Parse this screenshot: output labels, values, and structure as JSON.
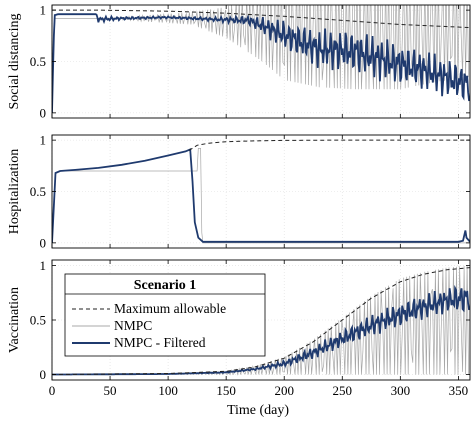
{
  "chart_data": {
    "type": "line",
    "xlabel": "Time (day)",
    "xlim": [
      0,
      360
    ],
    "xticks": [
      0,
      50,
      100,
      150,
      200,
      250,
      300,
      350
    ],
    "legend": {
      "placement": "lower-left of bottom panel",
      "title": "Scenario 1",
      "entries": [
        "Maximum allowable",
        "NMPC",
        "NMPC - Filtered"
      ]
    },
    "colors": {
      "filtered": "#1f3a6e",
      "nmpc": "#a8a8a8",
      "max": "#222222",
      "grid": "#dddddd"
    },
    "panels": [
      {
        "id": "social",
        "ylabel": "Social distancing",
        "ylim": [
          -0.05,
          1.05
        ],
        "yticks": [
          0,
          0.5,
          1
        ],
        "series": [
          {
            "name": "Maximum allowable",
            "style": "dashed",
            "x": [
              0,
              40,
              100,
              150,
              200,
              250,
              300,
              360
            ],
            "y": [
              1.0,
              1.0,
              0.99,
              0.97,
              0.94,
              0.9,
              0.86,
              0.83
            ]
          },
          {
            "name": "NMPC",
            "style": "thin-oscillating",
            "x": [
              0,
              2,
              5,
              38,
              40,
              120,
              150,
              180,
              200,
              230,
              260,
              300,
              330,
              360
            ],
            "y": [
              0,
              0.92,
              0.92,
              0.92,
              0.92,
              0.92,
              0.88,
              0.86,
              0.82,
              0.8,
              0.78,
              0.78,
              0.8,
              0.8
            ],
            "amplitude": [
              0,
              0,
              0,
              0,
              0,
              0.06,
              0.15,
              0.35,
              0.5,
              0.55,
              0.55,
              0.55,
              0.5,
              0.45
            ]
          },
          {
            "name": "NMPC - Filtered",
            "style": "solid",
            "x": [
              0,
              2,
              5,
              38,
              40,
              60,
              100,
              140,
              170,
              200,
              230,
              260,
              290,
              320,
              345,
              360
            ],
            "y": [
              0,
              0.95,
              0.96,
              0.96,
              0.91,
              0.92,
              0.93,
              0.91,
              0.9,
              0.76,
              0.62,
              0.6,
              0.5,
              0.42,
              0.32,
              0.28
            ],
            "amplitude": [
              0,
              0,
              0,
              0,
              0.03,
              0.015,
              0.01,
              0.02,
              0.05,
              0.15,
              0.2,
              0.22,
              0.22,
              0.2,
              0.2,
              0.2
            ]
          }
        ]
      },
      {
        "id": "hospital",
        "ylabel": "Hospitalization",
        "ylim": [
          -0.05,
          1.05
        ],
        "yticks": [
          0,
          0.5,
          1
        ],
        "series": [
          {
            "name": "Maximum allowable",
            "style": "dashed",
            "x": [
              118,
              125,
              135,
              150,
              170,
              200,
              250,
              300,
              360
            ],
            "y": [
              0.9,
              0.95,
              0.97,
              0.985,
              0.992,
              0.997,
              1.0,
              1.0,
              1.0
            ]
          },
          {
            "name": "NMPC",
            "style": "thin",
            "x": [
              0,
              3,
              7,
              15,
              16,
              120,
              125,
              126,
              128,
              129,
              130,
              360
            ],
            "y": [
              0,
              0.68,
              0.7,
              0.7,
              0.7,
              0.7,
              0.7,
              0.92,
              0.92,
              0.1,
              0,
              0
            ]
          },
          {
            "name": "NMPC - Filtered",
            "style": "solid",
            "x": [
              0,
              3,
              7,
              20,
              40,
              60,
              80,
              100,
              115,
              119,
              121,
              123,
              126,
              130,
              350,
              354,
              356,
              357,
              360
            ],
            "y": [
              0,
              0.68,
              0.7,
              0.71,
              0.73,
              0.76,
              0.8,
              0.85,
              0.89,
              0.91,
              0.6,
              0.2,
              0.05,
              0.01,
              0.01,
              0.02,
              0.12,
              0.05,
              0.01
            ]
          }
        ]
      },
      {
        "id": "vaccine",
        "ylabel": "Vaccination",
        "ylim": [
          -0.05,
          1.05
        ],
        "yticks": [
          0,
          0.5,
          1
        ],
        "series": [
          {
            "name": "Maximum allowable",
            "style": "dashed",
            "x": [
              0,
              100,
              150,
              175,
              200,
              225,
              250,
              275,
              300,
              320,
              340,
              360
            ],
            "y": [
              0,
              0.01,
              0.03,
              0.07,
              0.15,
              0.3,
              0.5,
              0.7,
              0.85,
              0.92,
              0.96,
              0.98
            ]
          },
          {
            "name": "NMPC",
            "style": "thin-oscillating",
            "x": [
              0,
              100,
              150,
              175,
              200,
              225,
              250,
              275,
              300,
              320,
              340,
              360
            ],
            "y": [
              0,
              0.005,
              0.015,
              0.04,
              0.08,
              0.16,
              0.26,
              0.36,
              0.44,
              0.47,
              0.49,
              0.5
            ],
            "amplitude": [
              0,
              0.003,
              0.015,
              0.04,
              0.08,
              0.16,
              0.26,
              0.36,
              0.44,
              0.47,
              0.49,
              0.5
            ]
          },
          {
            "name": "NMPC - Filtered",
            "style": "solid",
            "x": [
              0,
              100,
              150,
              175,
              200,
              225,
              250,
              275,
              300,
              320,
              340,
              355,
              360
            ],
            "y": [
              0,
              0.005,
              0.02,
              0.05,
              0.1,
              0.2,
              0.33,
              0.45,
              0.55,
              0.62,
              0.68,
              0.7,
              0.72
            ],
            "amplitude": [
              0,
              0,
              0.005,
              0.01,
              0.03,
              0.06,
              0.08,
              0.1,
              0.12,
              0.12,
              0.12,
              0.15,
              0.15
            ]
          }
        ]
      }
    ]
  }
}
